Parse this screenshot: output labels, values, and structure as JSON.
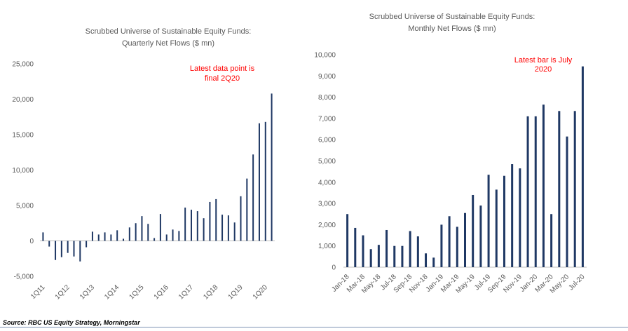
{
  "colors": {
    "bar": "#1f3864",
    "annotation": "#ff0000",
    "text": "#595959",
    "axis": "#bfbfbf",
    "rule": "#7f93b4"
  },
  "left_chart": {
    "title_line1": "Scrubbed Universe of Sustainable Equity Funds:",
    "title_line2": "Quarterly Net Flows ($ mn)",
    "annotation_line1": "Latest data point is",
    "annotation_line2": "final 2Q20"
  },
  "right_chart": {
    "title_line1": "Scrubbed Universe of Sustainable Equity Funds:",
    "title_line2": "Monthly Net Flows ($ mn)",
    "annotation_line1": "Latest bar is July",
    "annotation_line2": "2020"
  },
  "source": "Source: RBC US Equity Strategy, Morningstar",
  "chart_data": [
    {
      "type": "bar",
      "title": "Scrubbed Universe of Sustainable Equity Funds: Quarterly Net Flows ($ mn)",
      "xlabel": "",
      "ylabel": "",
      "ylim": [
        -5000,
        25000
      ],
      "yticks": [
        -5000,
        0,
        5000,
        10000,
        15000,
        20000,
        25000
      ],
      "ytick_labels": [
        "-5,000",
        "0",
        "5,000",
        "10,000",
        "15,000",
        "20,000",
        "25,000"
      ],
      "grid": false,
      "x_tick_labels": [
        "1Q11",
        "1Q12",
        "1Q13",
        "1Q14",
        "1Q15",
        "1Q16",
        "1Q17",
        "1Q18",
        "1Q19",
        "1Q20"
      ],
      "x_tick_every": 4,
      "categories": [
        "1Q11",
        "2Q11",
        "3Q11",
        "4Q11",
        "1Q12",
        "2Q12",
        "3Q12",
        "4Q12",
        "1Q13",
        "2Q13",
        "3Q13",
        "4Q13",
        "1Q14",
        "2Q14",
        "3Q14",
        "4Q14",
        "1Q15",
        "2Q15",
        "3Q15",
        "4Q15",
        "1Q16",
        "2Q16",
        "3Q16",
        "4Q16",
        "1Q17",
        "2Q17",
        "3Q17",
        "4Q17",
        "1Q18",
        "2Q18",
        "3Q18",
        "4Q18",
        "1Q19",
        "2Q19",
        "3Q19",
        "4Q19",
        "1Q20",
        "2Q20"
      ],
      "values": [
        1200,
        -800,
        -2700,
        -2300,
        -1700,
        -2200,
        -2900,
        -900,
        1300,
        900,
        1200,
        900,
        1500,
        300,
        1900,
        2500,
        3500,
        2400,
        400,
        3800,
        900,
        1600,
        1400,
        4700,
        4400,
        4200,
        3200,
        5500,
        5900,
        3700,
        3600,
        2600,
        6300,
        8800,
        12200,
        16600,
        16800,
        20800
      ],
      "annotation": "Latest data point is final 2Q20"
    },
    {
      "type": "bar",
      "title": "Scrubbed Universe of Sustainable Equity Funds: Monthly Net Flows ($ mn)",
      "xlabel": "",
      "ylabel": "",
      "ylim": [
        0,
        10000
      ],
      "yticks": [
        0,
        1000,
        2000,
        3000,
        4000,
        5000,
        6000,
        7000,
        8000,
        9000,
        10000
      ],
      "ytick_labels": [
        "0",
        "1,000",
        "2,000",
        "3,000",
        "4,000",
        "5,000",
        "6,000",
        "7,000",
        "8,000",
        "9,000",
        "10,000"
      ],
      "grid": false,
      "x_tick_labels": [
        "Jan-18",
        "Mar-18",
        "May-18",
        "Jul-18",
        "Sep-18",
        "Nov-18",
        "Jan-19",
        "Mar-19",
        "May-19",
        "Jul-19",
        "Sep-19",
        "Nov-19",
        "Jan-20",
        "Mar-20",
        "May-20",
        "Jul-20"
      ],
      "x_tick_every": 2,
      "categories": [
        "Jan-18",
        "Feb-18",
        "Mar-18",
        "Apr-18",
        "May-18",
        "Jun-18",
        "Jul-18",
        "Aug-18",
        "Sep-18",
        "Oct-18",
        "Nov-18",
        "Dec-18",
        "Jan-19",
        "Feb-19",
        "Mar-19",
        "Apr-19",
        "May-19",
        "Jun-19",
        "Jul-19",
        "Aug-19",
        "Sep-19",
        "Oct-19",
        "Nov-19",
        "Dec-19",
        "Jan-20",
        "Feb-20",
        "Mar-20",
        "Apr-20",
        "May-20",
        "Jun-20",
        "Jul-20"
      ],
      "values": [
        2500,
        1850,
        1500,
        850,
        1050,
        1750,
        1000,
        1000,
        1700,
        1450,
        650,
        450,
        2000,
        2400,
        1900,
        2550,
        3400,
        2900,
        4350,
        3650,
        4300,
        4850,
        4650,
        7100,
        7100,
        7650,
        2500,
        7350,
        6150,
        7350,
        9450
      ],
      "annotation": "Latest bar is July 2020"
    }
  ]
}
